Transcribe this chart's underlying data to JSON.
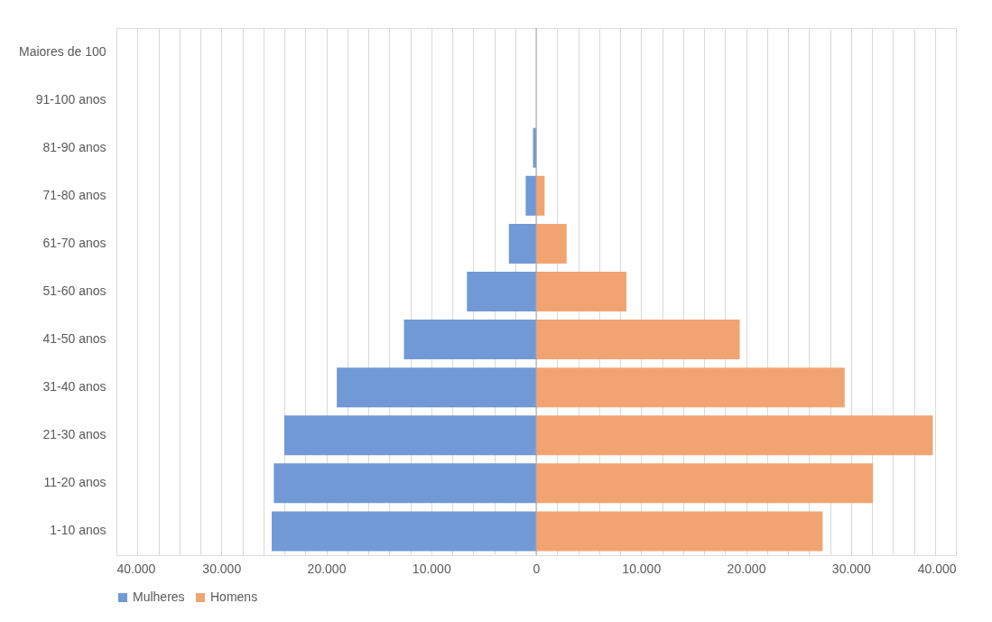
{
  "chart_data": {
    "type": "bar",
    "orientation": "horizontal",
    "categories": [
      "Maiores de 100",
      "91-100 anos",
      "81-90 anos",
      "71-80 anos",
      "61-70 anos",
      "51-60 anos",
      "41-50 anos",
      "31-40 anos",
      "21-30 anos",
      "11-20 anos",
      "1-10 anos"
    ],
    "series": [
      {
        "name": "Mulheres",
        "color": "#7199d6",
        "values": [
          0,
          0,
          -300,
          -1000,
          -2600,
          -6600,
          -12600,
          -19000,
          -24000,
          -25000,
          -25200
        ]
      },
      {
        "name": "Homens",
        "color": "#f1a471",
        "values": [
          0,
          0,
          null,
          800,
          2900,
          8600,
          19400,
          29400,
          37800,
          32100,
          27300
        ]
      }
    ],
    "xlim": [
      -40000,
      40000
    ],
    "xticks": [
      {
        "value": -40000,
        "label": "40.000"
      },
      {
        "value": -38000,
        "label": null
      },
      {
        "value": -36000,
        "label": null
      },
      {
        "value": -34000,
        "label": null
      },
      {
        "value": -32000,
        "label": null
      },
      {
        "value": -30000,
        "label": "30.000"
      },
      {
        "value": -28000,
        "label": null
      },
      {
        "value": -26000,
        "label": null
      },
      {
        "value": -24000,
        "label": null
      },
      {
        "value": -22000,
        "label": null
      },
      {
        "value": -20000,
        "label": "20.000"
      },
      {
        "value": -18000,
        "label": null
      },
      {
        "value": -16000,
        "label": null
      },
      {
        "value": -14000,
        "label": null
      },
      {
        "value": -12000,
        "label": null
      },
      {
        "value": -10000,
        "label": "10.000"
      },
      {
        "value": -8000,
        "label": null
      },
      {
        "value": -6000,
        "label": null
      },
      {
        "value": -4000,
        "label": null
      },
      {
        "value": -2000,
        "label": null
      },
      0,
      {
        "value": 2000,
        "label": null
      },
      {
        "value": 4000,
        "label": null
      },
      {
        "value": 6000,
        "label": null
      },
      {
        "value": 8000,
        "label": null
      },
      {
        "value": 10000,
        "label": "10.000"
      },
      {
        "value": 12000,
        "label": null
      },
      {
        "value": 14000,
        "label": null
      },
      {
        "value": 16000,
        "label": null
      },
      {
        "value": 18000,
        "label": null
      },
      {
        "value": 20000,
        "label": "20.000"
      },
      {
        "value": 22000,
        "label": null
      },
      {
        "value": 24000,
        "label": null
      },
      {
        "value": 26000,
        "label": null
      },
      {
        "value": 28000,
        "label": null
      },
      {
        "value": 30000,
        "label": "30.000"
      },
      {
        "value": 32000,
        "label": null
      },
      {
        "value": 34000,
        "label": null
      },
      {
        "value": 36000,
        "label": null
      },
      {
        "value": 38000,
        "label": null
      },
      {
        "value": 40000,
        "label": "40.000"
      }
    ],
    "grid": "x",
    "legend": "bottom",
    "stacked": true
  }
}
